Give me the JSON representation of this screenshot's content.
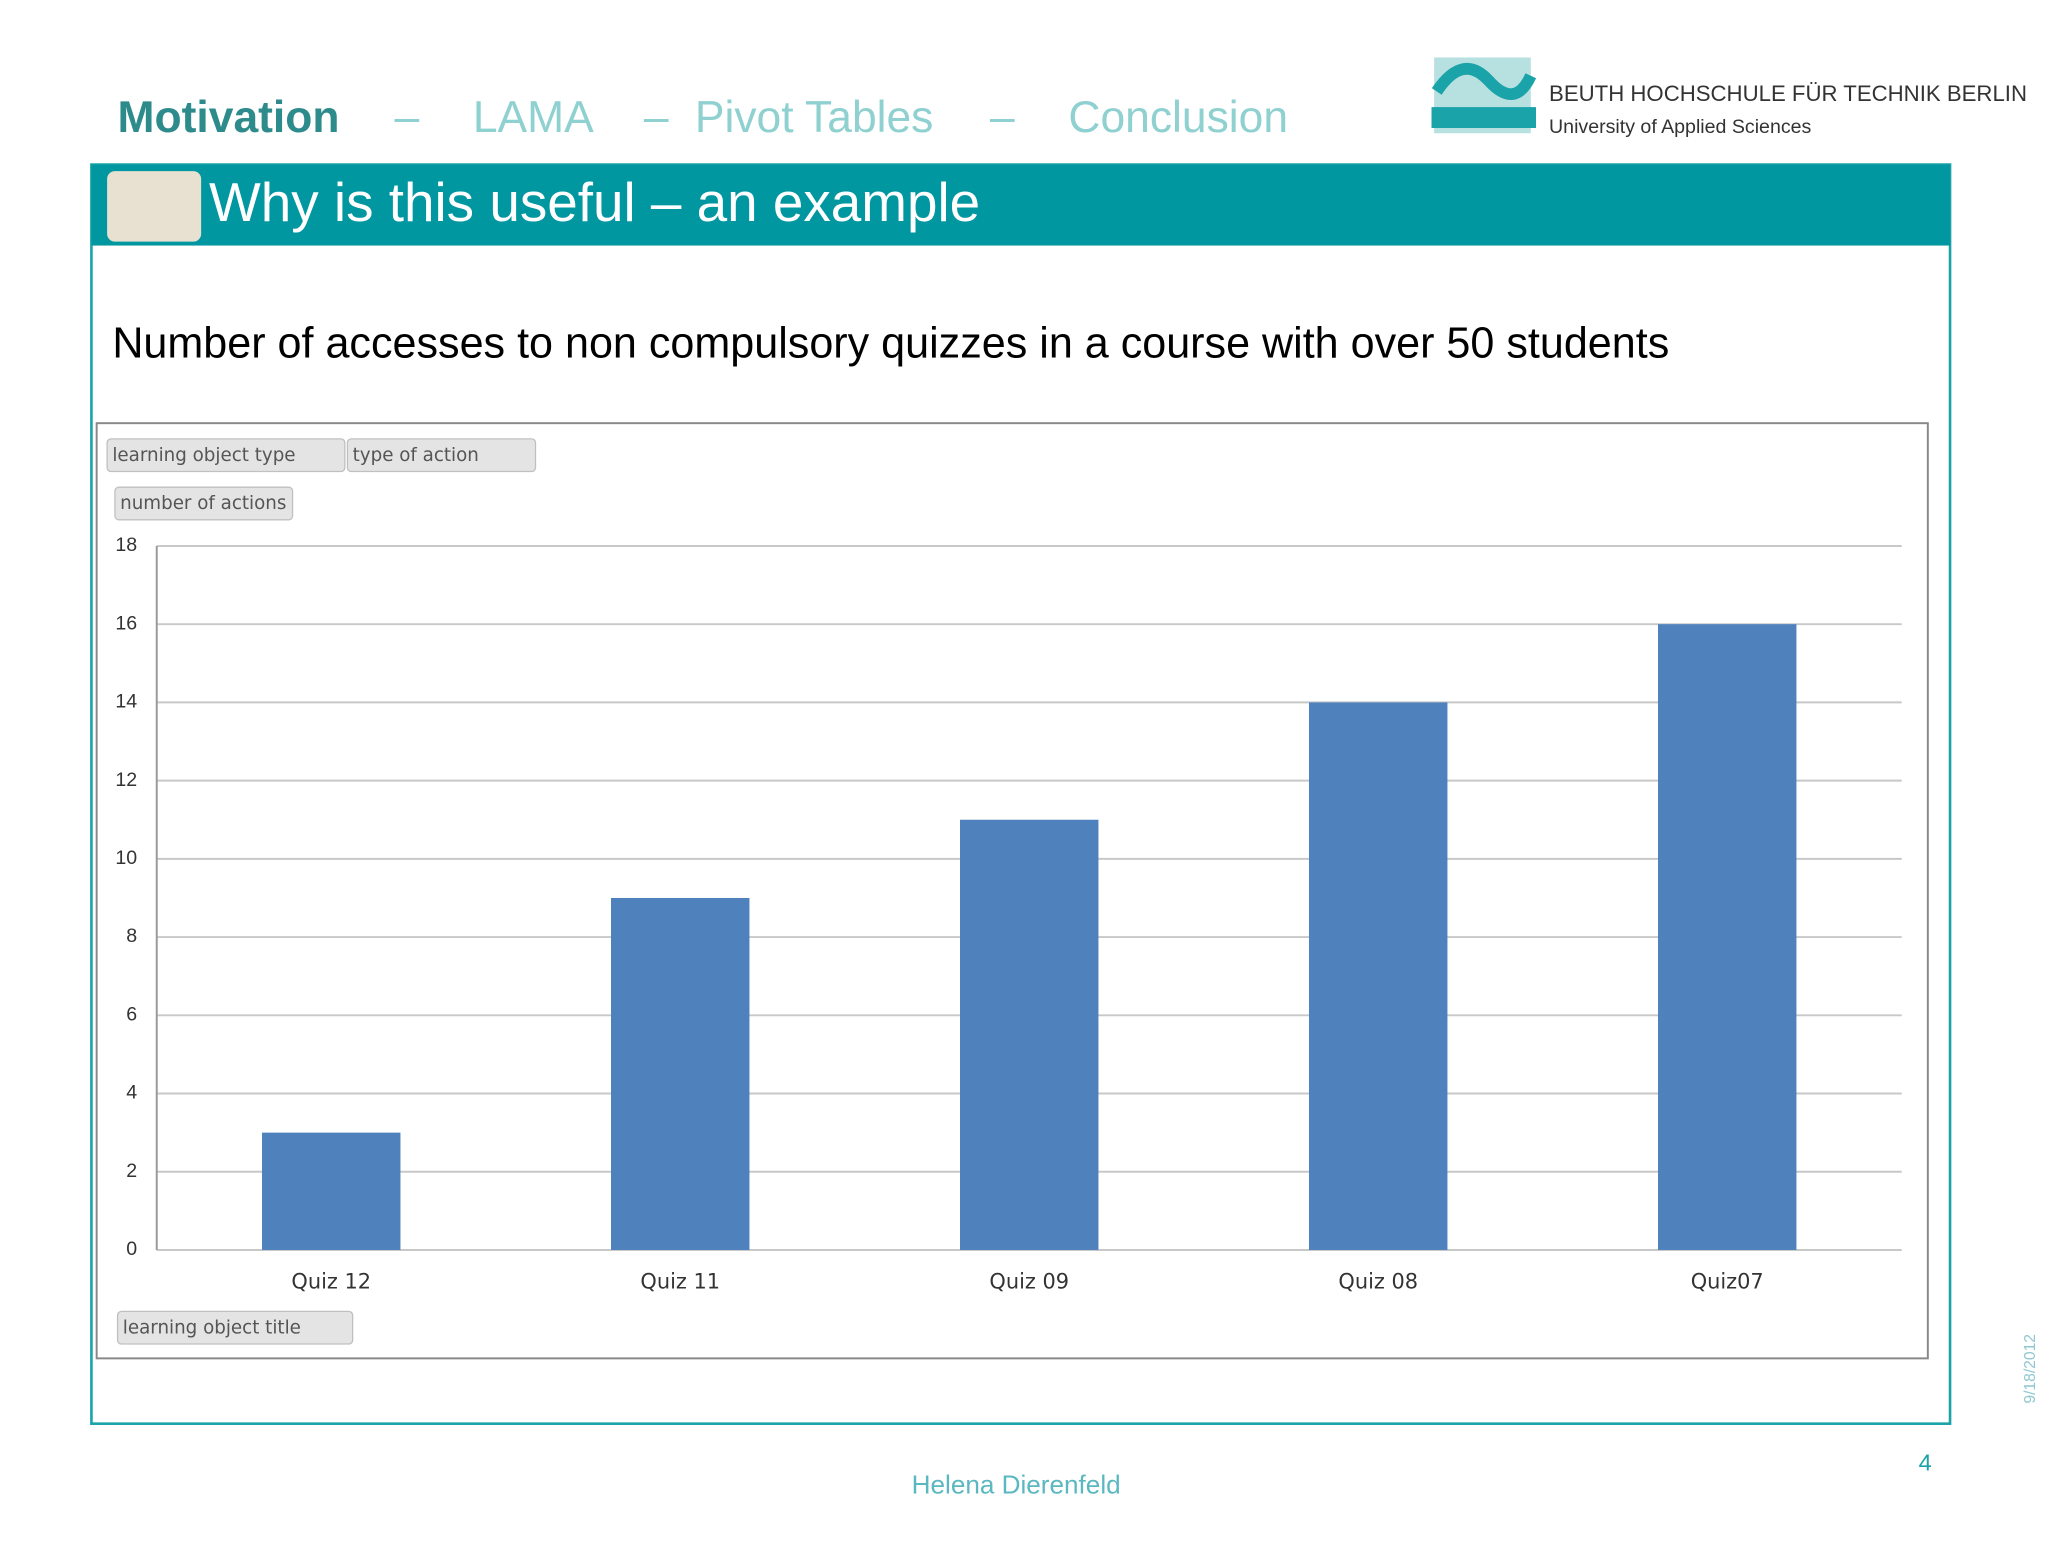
{
  "slide": {
    "nav": [
      "Motivation",
      "–",
      "LAMA",
      "–",
      "Pivot Tables",
      "–",
      "Conclusion"
    ],
    "logo_name": "BEUTH HOCHSCHULE FÜR TECHNIK BERLIN",
    "logo_sub": "University of Applied Sciences",
    "heading": "Why is this useful – an example",
    "pivot_fields": [
      "learning object type",
      "type of action",
      "number of actions",
      "learning object title"
    ],
    "author": "Helena Dierenfeld",
    "page": "4",
    "date": "9/18/2012"
  },
  "chart_data": {
    "type": "bar",
    "title": "Number of accesses to non compulsory quizzes in a course with over 50 students",
    "categories": [
      "Quiz 12",
      "Quiz 11",
      "Quiz 09",
      "Quiz 08",
      "Quiz07"
    ],
    "values": [
      3,
      9,
      11,
      14,
      16
    ],
    "color": "#4f81bd",
    "ylim": [
      0,
      18
    ],
    "yticks": [
      0,
      2,
      4,
      6,
      8,
      10,
      12,
      14,
      16,
      18
    ],
    "grid": true
  }
}
